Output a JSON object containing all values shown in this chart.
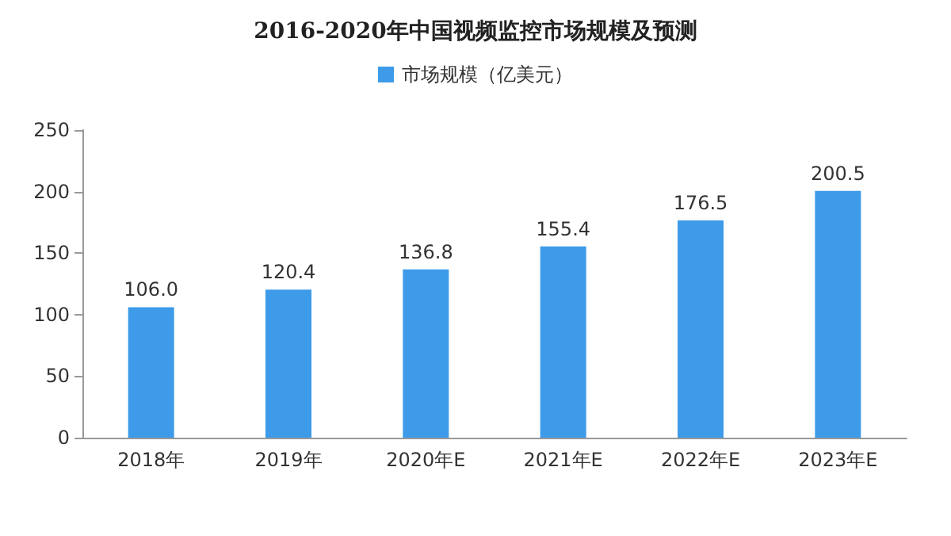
{
  "chart_data": {
    "type": "bar",
    "title": "2016-2020年中国视频监控市场规模及预测",
    "categories": [
      "2018年",
      "2019年",
      "2020年E",
      "2021年E",
      "2022年E",
      "2023年E"
    ],
    "series": [
      {
        "name": "市场规模（亿美元）",
        "color": "#3d9be9",
        "values": [
          106.0,
          120.4,
          136.8,
          155.4,
          176.5,
          200.5
        ],
        "value_labels": [
          "106.0",
          "120.4",
          "136.8",
          "155.4",
          "176.5",
          "200.5"
        ]
      }
    ],
    "ylim": [
      0,
      250
    ],
    "yticks": [
      0,
      50,
      100,
      150,
      200,
      250
    ],
    "grid": false,
    "legend": "top"
  }
}
